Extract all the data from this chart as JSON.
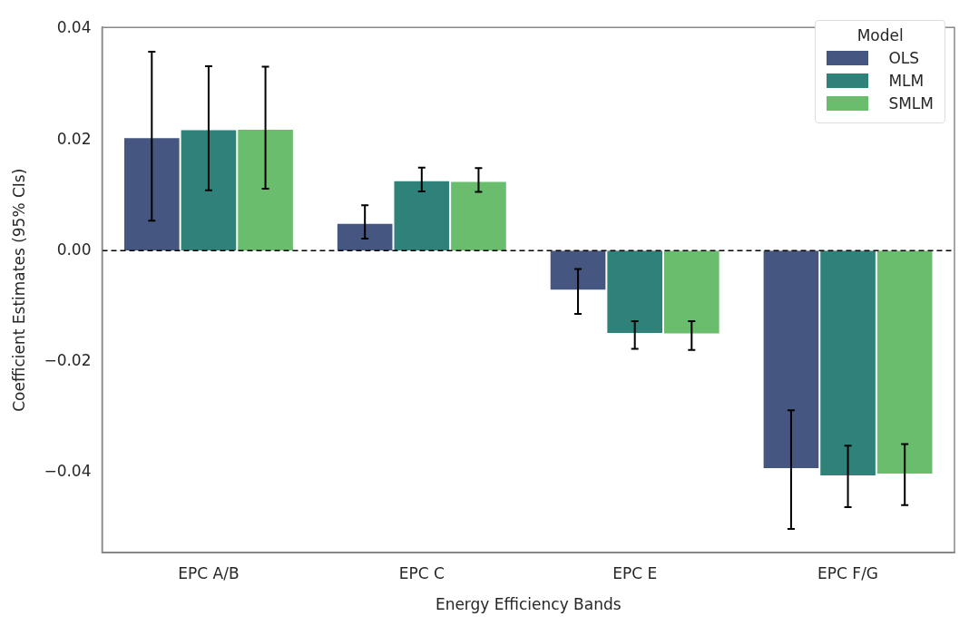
{
  "chart_data": {
    "type": "bar",
    "xlabel": "Energy Efficiency Bands",
    "ylabel": "Coefficient Estimates (95% CIs)",
    "legend_title": "Model",
    "categories": [
      "EPC A/B",
      "EPC C",
      "EPC E",
      "EPC F/G"
    ],
    "series": [
      {
        "name": "OLS",
        "color": "#455681",
        "values": [
          0.0205,
          0.005,
          -0.0072,
          -0.0394
        ],
        "errors": [
          [
            0.0054,
            0.0359
          ],
          [
            0.0022,
            0.0082
          ],
          [
            -0.0114,
            -0.0033
          ],
          [
            -0.0502,
            -0.0288
          ]
        ]
      },
      {
        "name": "MLM",
        "color": "#2e8279",
        "values": [
          0.0219,
          0.0127,
          -0.015,
          -0.0407
        ],
        "errors": [
          [
            0.0109,
            0.0333
          ],
          [
            0.0107,
            0.015
          ],
          [
            -0.0177,
            -0.0127
          ],
          [
            -0.0463,
            -0.0352
          ]
        ]
      },
      {
        "name": "SMLM",
        "color": "#6abd6c",
        "values": [
          0.022,
          0.0126,
          -0.0151,
          -0.0404
        ],
        "errors": [
          [
            0.0112,
            0.0332
          ],
          [
            0.0106,
            0.0149
          ],
          [
            -0.0179,
            -0.0127
          ],
          [
            -0.0459,
            -0.0349
          ]
        ]
      }
    ],
    "ylim": [
      -0.0545,
      0.0403
    ],
    "yticks": [
      {
        "value": -0.04,
        "label": "−0.04"
      },
      {
        "value": -0.02,
        "label": "−0.02"
      },
      {
        "value": 0,
        "label": "0.00"
      },
      {
        "value": 0.02,
        "label": "0.02"
      },
      {
        "value": 0.04,
        "label": "0.04"
      }
    ],
    "ref_lines": [
      {
        "axis": "y",
        "value": 0,
        "color": "#000000",
        "line_style": "dashed"
      }
    ],
    "grid": false,
    "legend": "top right"
  }
}
